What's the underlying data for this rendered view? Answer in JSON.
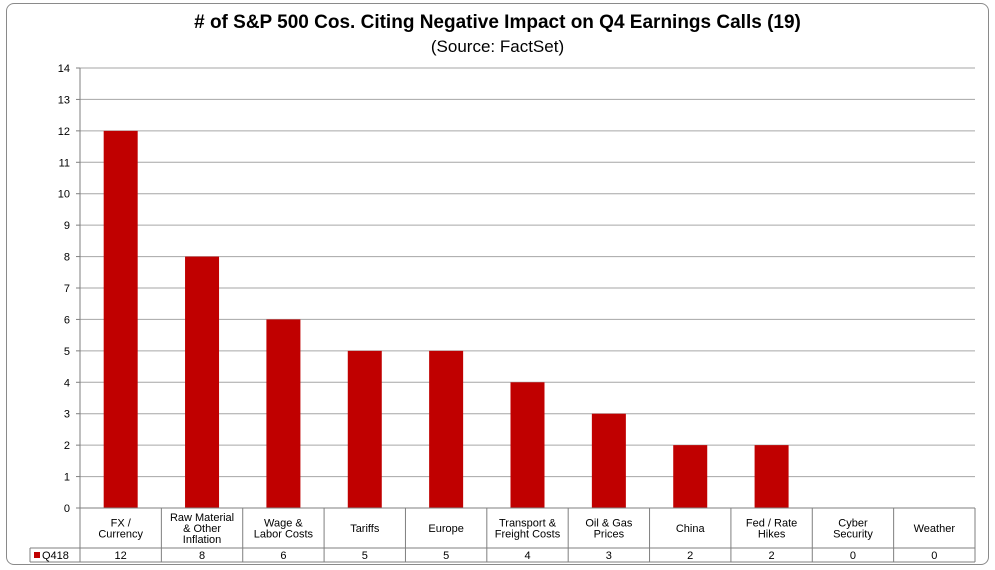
{
  "chart_data": {
    "type": "bar",
    "title": "# of S&P 500 Cos. Citing Negative Impact on Q4 Earnings Calls (19)",
    "subtitle": "(Source: FactSet)",
    "categories": [
      [
        "FX /",
        "Currency"
      ],
      [
        "Raw Material",
        "& Other",
        "Inflation"
      ],
      [
        "Wage &",
        "Labor Costs"
      ],
      [
        "Tariffs"
      ],
      [
        "Europe"
      ],
      [
        "Transport &",
        "Freight Costs"
      ],
      [
        "Oil & Gas",
        "Prices"
      ],
      [
        "China"
      ],
      [
        "Fed / Rate",
        "Hikes"
      ],
      [
        "Cyber",
        "Security"
      ],
      [
        "Weather"
      ]
    ],
    "series": [
      {
        "name": "Q418",
        "values": [
          12,
          8,
          6,
          5,
          5,
          4,
          3,
          2,
          2,
          0,
          0
        ],
        "color": "#c00000"
      }
    ],
    "table_values": [
      "12",
      "8",
      "6",
      "5",
      "5",
      "4",
      "3",
      "2",
      "2",
      "0",
      "0"
    ],
    "yticks": [
      "0",
      "1",
      "2",
      "3",
      "4",
      "5",
      "6",
      "7",
      "8",
      "9",
      "10",
      "11",
      "12",
      "13",
      "14"
    ],
    "ylim": [
      0,
      14
    ],
    "grid": true,
    "legend": "data-table"
  }
}
